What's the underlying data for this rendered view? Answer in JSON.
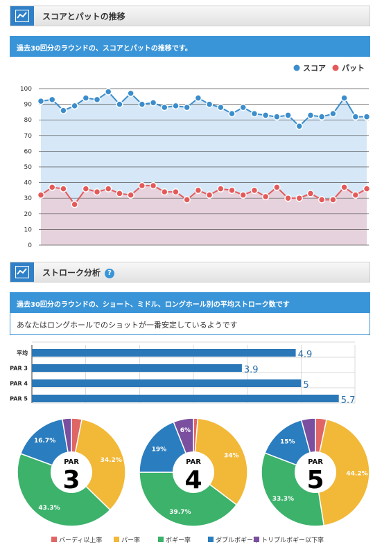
{
  "section1": {
    "title": "スコアとパットの推移",
    "subtitle": "過去30回分のラウンドの、スコアとパットの推移です。"
  },
  "section2": {
    "title": "ストローク分析",
    "help_icon": "?",
    "subtitle": "過去30回分のラウンドの、ショート、ミドル、ロングホール別の平均ストローク数です",
    "message": "あなたはロングホールでのショットが一番安定しているようです"
  },
  "colors": {
    "score": "#3c8dcc",
    "putt": "#e45a5a",
    "score_fill": "#d6e8f7",
    "putt_fill": "#e6d2dc",
    "bar": "#2a78b8",
    "birdie": "#e06666",
    "par": "#f2b837",
    "bogey": "#3cb26b",
    "double": "#2a7dbe",
    "triple": "#7b4fa0"
  },
  "chart_data": [
    {
      "type": "line",
      "x": [
        1,
        2,
        3,
        4,
        5,
        6,
        7,
        8,
        9,
        10,
        11,
        12,
        13,
        14,
        15,
        16,
        17,
        18,
        19,
        20,
        21,
        22,
        23,
        24,
        25,
        26,
        27,
        28,
        29,
        30
      ],
      "series": [
        {
          "name": "スコア",
          "values": [
            92,
            93,
            86,
            89,
            94,
            93,
            98,
            90,
            97,
            90,
            91,
            88,
            89,
            88,
            94,
            90,
            88,
            84,
            88,
            84,
            83,
            82,
            83,
            76,
            83,
            82,
            84,
            94,
            82,
            82
          ]
        },
        {
          "name": "パット",
          "values": [
            32,
            37,
            36,
            26,
            36,
            34,
            36,
            33,
            32,
            38,
            38,
            34,
            34,
            29,
            35,
            32,
            36,
            35,
            32,
            35,
            31,
            37,
            30,
            30,
            33,
            29,
            29,
            37,
            32,
            36
          ]
        }
      ],
      "ylim": [
        0,
        100
      ],
      "yticks": [
        0,
        10,
        20,
        30,
        40,
        50,
        60,
        70,
        80,
        90,
        100
      ],
      "legend": "top-right",
      "grid": true
    },
    {
      "type": "bar",
      "orientation": "horizontal",
      "categories": [
        "平均",
        "PAR 3",
        "PAR 4",
        "PAR 5"
      ],
      "values": [
        4.9,
        3.9,
        5,
        5.7
      ],
      "labels": [
        "4.9",
        "3.9",
        "5",
        "5.7"
      ],
      "xlim": [
        0,
        6
      ]
    },
    {
      "type": "pie",
      "title": "PAR 3",
      "center_label": "PAR",
      "center_number": "3",
      "slices": [
        {
          "name": "バーディ以上率",
          "value": 3.1,
          "label": ""
        },
        {
          "name": "パー率",
          "value": 34.2,
          "label": "34.2%"
        },
        {
          "name": "ボギー率",
          "value": 43.3,
          "label": "43.3%"
        },
        {
          "name": "ダブルボギー率",
          "value": 16.7,
          "label": "16.7%"
        },
        {
          "name": "トリプルボギー以下率",
          "value": 2.7,
          "label": ""
        }
      ]
    },
    {
      "type": "pie",
      "title": "PAR 4",
      "center_label": "PAR",
      "center_number": "4",
      "slices": [
        {
          "name": "バーディ以上率",
          "value": 1.3,
          "label": ""
        },
        {
          "name": "パー率",
          "value": 34,
          "label": "34%"
        },
        {
          "name": "ボギー率",
          "value": 39.7,
          "label": "39.7%"
        },
        {
          "name": "ダブルボギー率",
          "value": 19,
          "label": "19%"
        },
        {
          "name": "トリプルボギー以下率",
          "value": 6,
          "label": "6%"
        }
      ]
    },
    {
      "type": "pie",
      "title": "PAR 5",
      "center_label": "PAR",
      "center_number": "5",
      "slices": [
        {
          "name": "バーディ以上率",
          "value": 3.3,
          "label": ""
        },
        {
          "name": "パー率",
          "value": 44.2,
          "label": "44.2%"
        },
        {
          "name": "ボギー率",
          "value": 33.3,
          "label": "33.3%"
        },
        {
          "name": "ダブルボギー率",
          "value": 15,
          "label": "15%"
        },
        {
          "name": "トリプルボギー以下率",
          "value": 4.2,
          "label": ""
        }
      ]
    }
  ],
  "pie_legend": [
    "バーディ以上率",
    "パー率",
    "ボギー率",
    "ダブルボギー率",
    "トリプルボギー以下率"
  ]
}
